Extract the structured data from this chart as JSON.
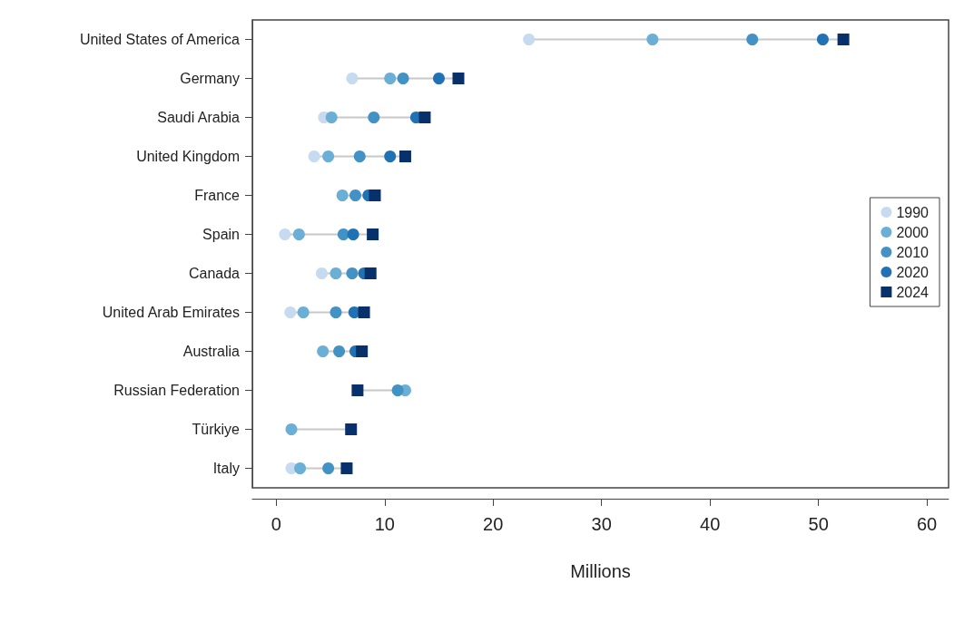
{
  "chart_data": {
    "type": "scatter",
    "orientation": "horizontal",
    "xlabel": "Millions",
    "categories": [
      "United States of America",
      "Germany",
      "Saudi Arabia",
      "United Kingdom",
      "France",
      "Spain",
      "Canada",
      "United Arab Emirates",
      "Australia",
      "Russian Federation",
      "Türkiye",
      "Italy"
    ],
    "xlim": [
      -2.2,
      62
    ],
    "xticks": [
      0,
      10,
      20,
      30,
      40,
      50,
      60
    ],
    "grid": false,
    "legend": "right",
    "series": [
      {
        "name": "1990",
        "color": "#c6dbef",
        "marker": "circle",
        "values": [
          23.3,
          7.0,
          4.4,
          3.5,
          null,
          0.8,
          4.2,
          1.3,
          null,
          null,
          null,
          1.4
        ]
      },
      {
        "name": "2000",
        "color": "#6baed6",
        "marker": "circle",
        "values": [
          34.7,
          10.5,
          5.1,
          4.8,
          6.1,
          2.1,
          5.5,
          2.5,
          4.3,
          11.9,
          1.4,
          2.2
        ]
      },
      {
        "name": "2010",
        "color": "#4292c6",
        "marker": "circle",
        "values": [
          43.9,
          11.7,
          9.0,
          7.7,
          7.3,
          6.2,
          7.0,
          5.5,
          5.8,
          11.2,
          null,
          4.8
        ]
      },
      {
        "name": "2020",
        "color": "#2171b5",
        "marker": "circle",
        "values": [
          50.4,
          15.0,
          12.9,
          10.5,
          8.5,
          7.1,
          8.1,
          7.2,
          7.3,
          null,
          null,
          null
        ]
      },
      {
        "name": "2024",
        "color": "#08306b",
        "marker": "square",
        "values": [
          52.3,
          16.8,
          13.7,
          11.9,
          9.1,
          8.9,
          8.7,
          8.1,
          7.9,
          7.5,
          6.9,
          6.5
        ]
      }
    ]
  }
}
